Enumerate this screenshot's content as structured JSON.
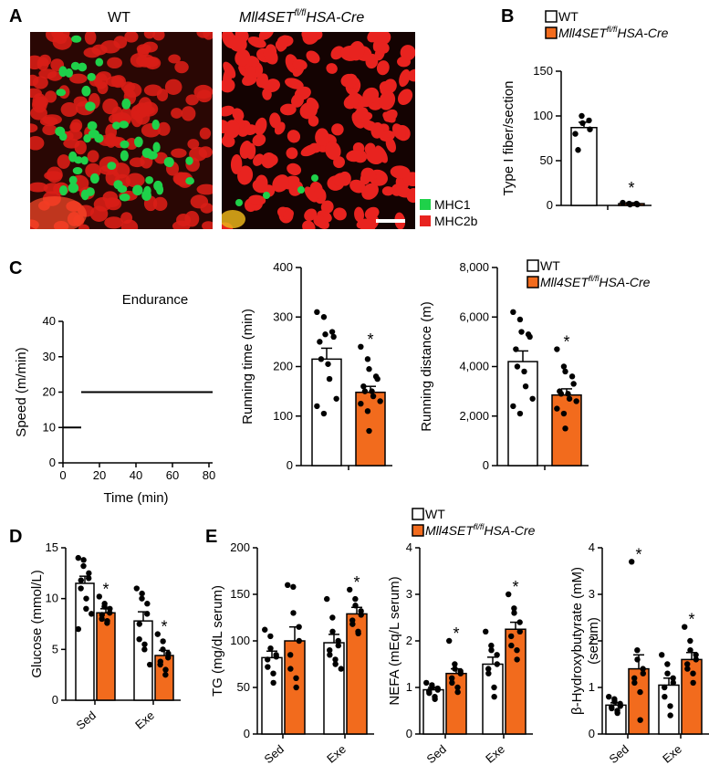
{
  "colors": {
    "wt_fill": "#ffffff",
    "ko_fill": "#f26b1d",
    "mhc1": "#1fd14a",
    "mhc2b": "#e8231f",
    "axis": "#000000"
  },
  "panels": {
    "a": "A",
    "b": "B",
    "c": "C",
    "d": "D",
    "e": "E"
  },
  "micro": {
    "wt_label": "WT",
    "ko_label_main": "Mll4SET",
    "ko_label_sup": "fl/fl",
    "ko_label_tail": "HSA-Cre",
    "legend": [
      {
        "label": "MHC1",
        "color": "#1fd14a"
      },
      {
        "label": "MHC2b",
        "color": "#e8231f"
      }
    ]
  },
  "legend": {
    "wt": "WT",
    "ko_main": "Mll4SET",
    "ko_sup": "fl/fl",
    "ko_tail": "HSA-Cre"
  },
  "chart_data": [
    {
      "id": "b-type1",
      "type": "bar",
      "ylabel": "Type I fiber/section",
      "ylim": [
        0,
        150
      ],
      "yticks": [
        0,
        50,
        100,
        150
      ],
      "categories": [
        "WT",
        "Mll4SETfl/flHSA-Cre"
      ],
      "values": [
        87,
        2
      ],
      "sem": [
        6,
        1
      ],
      "points": [
        [
          80,
          100,
          92,
          95,
          85,
          62
        ],
        [
          3,
          2,
          1,
          2,
          1
        ]
      ],
      "significant": [
        false,
        true
      ]
    },
    {
      "id": "c-endurance",
      "type": "line",
      "title": "Endurance",
      "xlabel": "Time (min)",
      "ylabel": "Speed (m/min)",
      "xlim": [
        0,
        80
      ],
      "ylim": [
        0,
        40
      ],
      "xticks": [
        0,
        20,
        40,
        60,
        80
      ],
      "yticks": [
        0,
        10,
        20,
        30,
        40
      ],
      "segments": [
        {
          "x": [
            0,
            10
          ],
          "y": [
            10,
            10
          ]
        },
        {
          "x": [
            10,
            82
          ],
          "y": [
            20,
            20
          ]
        }
      ]
    },
    {
      "id": "c-time",
      "type": "bar",
      "ylabel": "Running time (min)",
      "ylim": [
        0,
        400
      ],
      "yticks": [
        0,
        100,
        200,
        300,
        400
      ],
      "categories": [
        "WT",
        "Mll4SETfl/flHSA-Cre"
      ],
      "values": [
        215,
        148
      ],
      "sem": [
        22,
        12
      ],
      "points": [
        [
          310,
          300,
          265,
          270,
          260,
          250,
          215,
          205,
          175,
          135,
          120,
          105
        ],
        [
          240,
          215,
          195,
          180,
          175,
          160,
          150,
          150,
          140,
          130,
          125,
          110,
          70
        ]
      ],
      "significant": [
        false,
        true
      ]
    },
    {
      "id": "c-distance",
      "type": "bar",
      "ylabel": "Running distance (m)",
      "ylim": [
        0,
        8000
      ],
      "yticks": [
        0,
        2000,
        4000,
        6000,
        8000
      ],
      "yticklabels": [
        "0",
        "2,000",
        "4,000",
        "6,000",
        "8,000"
      ],
      "categories": [
        "WT",
        "Mll4SETfl/flHSA-Cre"
      ],
      "values": [
        4200,
        2850
      ],
      "sem": [
        430,
        250
      ],
      "points": [
        [
          6200,
          5900,
          5400,
          5300,
          5200,
          4700,
          4000,
          3800,
          3200,
          2700,
          2400,
          2100
        ],
        [
          4700,
          4000,
          3800,
          3600,
          3300,
          3000,
          2900,
          2900,
          2700,
          2600,
          2300,
          2100,
          1500
        ]
      ],
      "significant": [
        false,
        true
      ]
    },
    {
      "id": "d-glucose",
      "type": "bar",
      "ylabel": "Glucose (mmol/L)",
      "ylim": [
        0,
        15
      ],
      "yticks": [
        0,
        5,
        10,
        15
      ],
      "categories": [
        "Sed",
        "Exe"
      ],
      "series": [
        {
          "name": "WT",
          "values": [
            11.5,
            7.8
          ],
          "sem": [
            0.7,
            0.9
          ],
          "points": [
            [
              14,
              13.8,
              13.2,
              12.5,
              12,
              11.8,
              11,
              10,
              9,
              8.5,
              7
            ],
            [
              11,
              10.5,
              10,
              9.5,
              8.5,
              7.5,
              6,
              5.5,
              5,
              3.5
            ]
          ]
        },
        {
          "name": "Mll4SETfl/flHSA-Cre",
          "values": [
            8.6,
            4.4
          ],
          "sem": [
            0.4,
            0.5
          ],
          "points": [
            [
              10.2,
              9.5,
              9.2,
              9,
              8.6,
              8.4,
              8,
              7.8,
              7.6
            ],
            [
              6.5,
              5.8,
              5,
              4.6,
              4.2,
              3.8,
              3.5,
              3,
              2.5
            ]
          ]
        }
      ],
      "significant": [
        [
          false,
          true
        ],
        [
          false,
          true
        ]
      ]
    },
    {
      "id": "e-tg",
      "type": "bar",
      "ylabel": "TG (mg/dL serum)",
      "ylim": [
        0,
        200
      ],
      "yticks": [
        0,
        50,
        100,
        150,
        200
      ],
      "categories": [
        "Sed",
        "Exe"
      ],
      "series": [
        {
          "name": "WT",
          "values": [
            82,
            98
          ],
          "sem": [
            7,
            9
          ],
          "points": [
            [
              112,
              105,
              92,
              85,
              83,
              80,
              72,
              65,
              55
            ],
            [
              145,
              125,
              110,
              100,
              95,
              90,
              85,
              80,
              75,
              70
            ]
          ]
        },
        {
          "name": "Mll4SETfl/flHSA-Cre",
          "values": [
            100,
            129
          ],
          "sem": [
            15,
            7
          ],
          "points": [
            [
              160,
              158,
              130,
              115,
              100,
              85,
              70,
              60,
              50
            ],
            [
              155,
              145,
              138,
              132,
              128,
              122,
              118,
              110,
              108
            ]
          ]
        }
      ],
      "significant": [
        [
          false,
          false
        ],
        [
          false,
          true
        ]
      ]
    },
    {
      "id": "e-nefa",
      "type": "bar",
      "ylabel": "NEFA (mEq/L serum)",
      "ylim": [
        0,
        4
      ],
      "yticks": [
        0,
        1,
        2,
        3,
        4
      ],
      "categories": [
        "Sed",
        "Exe"
      ],
      "series": [
        {
          "name": "WT",
          "values": [
            0.95,
            1.5
          ],
          "sem": [
            0.05,
            0.15
          ],
          "points": [
            [
              1.1,
              1.05,
              1.0,
              0.98,
              0.95,
              0.92,
              0.88,
              0.8,
              0.75
            ],
            [
              2.2,
              1.9,
              1.8,
              1.7,
              1.5,
              1.4,
              1.3,
              1.0,
              0.8
            ]
          ]
        },
        {
          "name": "Mll4SETfl/flHSA-Cre",
          "values": [
            1.3,
            2.25
          ],
          "sem": [
            0.1,
            0.15
          ],
          "points": [
            [
              2.0,
              1.5,
              1.4,
              1.35,
              1.3,
              1.2,
              1.1,
              1.0,
              0.9
            ],
            [
              3.0,
              2.7,
              2.6,
              2.4,
              2.2,
              2.1,
              1.9,
              1.8,
              1.6
            ]
          ]
        }
      ],
      "significant": [
        [
          false,
          true
        ],
        [
          false,
          true
        ]
      ]
    },
    {
      "id": "e-bhb",
      "type": "bar",
      "ylabel": "β-Hydroxybutyrate (mM)",
      "ylabel2": "(serum)",
      "ylim": [
        0,
        4
      ],
      "yticks": [
        0,
        1,
        2,
        3,
        4
      ],
      "categories": [
        "Sed",
        "Exe"
      ],
      "series": [
        {
          "name": "WT",
          "values": [
            0.62,
            1.05
          ],
          "sem": [
            0.05,
            0.15
          ],
          "points": [
            [
              0.8,
              0.75,
              0.7,
              0.65,
              0.6,
              0.58,
              0.55,
              0.5,
              0.45
            ],
            [
              1.7,
              1.5,
              1.3,
              1.2,
              1.1,
              1.0,
              0.8,
              0.6,
              0.4
            ]
          ]
        },
        {
          "name": "Mll4SETfl/flHSA-Cre",
          "values": [
            1.4,
            1.6
          ],
          "sem": [
            0.3,
            0.15
          ],
          "points": [
            [
              3.7,
              1.8,
              1.6,
              1.4,
              1.3,
              1.2,
              1.1,
              0.9,
              0.3
            ],
            [
              2.3,
              2.0,
              1.8,
              1.7,
              1.6,
              1.5,
              1.4,
              1.3,
              1.1
            ]
          ]
        }
      ],
      "significant": [
        [
          false,
          true
        ],
        [
          false,
          true
        ]
      ]
    }
  ]
}
